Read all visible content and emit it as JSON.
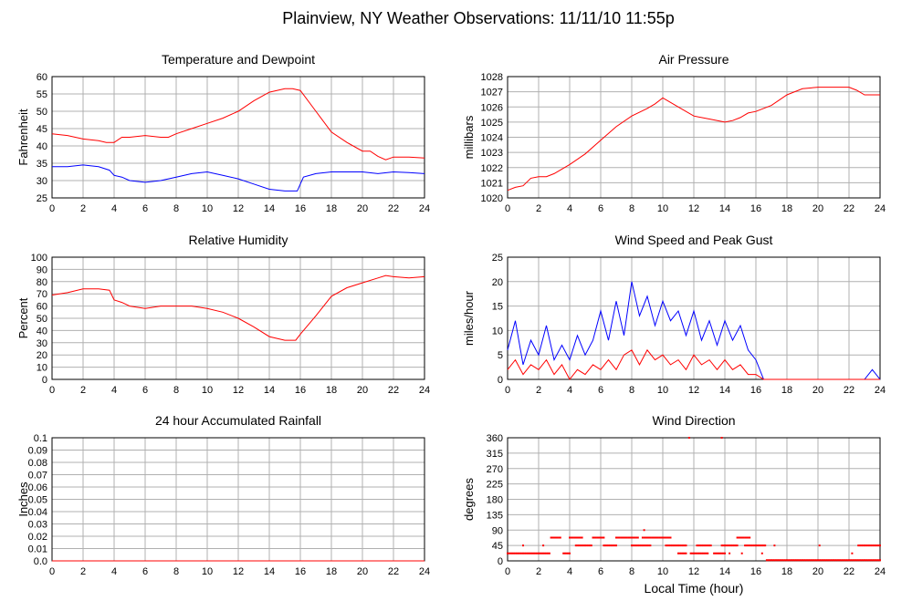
{
  "title": "Plainview, NY Weather Observations: 11/11/10 11:55p",
  "colors": {
    "red": "#ff0000",
    "blue": "#0000ff",
    "grid": "#b0b0b0",
    "frame": "#000000"
  },
  "chart_data": [
    {
      "id": "temp",
      "type": "line",
      "title": "Temperature and Dewpoint",
      "ylabel": "Fahrenheit",
      "xlabel": "",
      "xlim": [
        0,
        24
      ],
      "ylim": [
        25,
        60
      ],
      "xticks": [
        0,
        2,
        4,
        6,
        8,
        10,
        12,
        14,
        16,
        18,
        20,
        22,
        24
      ],
      "yticks": [
        "25",
        "30",
        "35",
        "40",
        "45",
        "50",
        "55",
        "60"
      ],
      "grid": true,
      "series": [
        {
          "color": "#ff0000",
          "x": [
            0,
            1,
            2,
            3,
            3.5,
            4,
            4.5,
            5,
            6,
            7,
            7.5,
            8,
            9,
            10,
            11,
            12,
            13,
            14,
            15,
            15.5,
            16,
            17,
            18,
            19,
            20,
            20.5,
            21,
            21.5,
            22,
            23,
            24
          ],
          "y": [
            43.5,
            43,
            42,
            41.5,
            41,
            41,
            42.5,
            42.5,
            43,
            42.5,
            42.5,
            43.5,
            45,
            46.5,
            48,
            50,
            53,
            55.5,
            56.5,
            56.5,
            56,
            50,
            44,
            41,
            38.5,
            38.5,
            37,
            36,
            36.8,
            36.8,
            36.5
          ]
        },
        {
          "color": "#0000ff",
          "x": [
            0,
            1,
            2,
            3,
            3.7,
            4,
            4.5,
            5,
            6,
            7,
            8,
            9,
            10,
            11,
            12,
            13,
            14,
            15,
            15.8,
            16,
            16.2,
            17,
            18,
            19,
            20,
            21,
            22,
            23,
            24
          ],
          "y": [
            34,
            34,
            34.5,
            34,
            33,
            31.5,
            31,
            30,
            29.5,
            30,
            31,
            32,
            32.5,
            31.5,
            30.5,
            29,
            27.5,
            27,
            27,
            29,
            31,
            32,
            32.5,
            32.5,
            32.5,
            32,
            32.5,
            32.3,
            32
          ]
        }
      ]
    },
    {
      "id": "pressure",
      "type": "line",
      "title": "Air Pressure",
      "ylabel": "millibars",
      "xlabel": "",
      "xlim": [
        0,
        24
      ],
      "ylim": [
        1020,
        1028
      ],
      "xticks": [
        0,
        2,
        4,
        6,
        8,
        10,
        12,
        14,
        16,
        18,
        20,
        22,
        24
      ],
      "yticks": [
        "1020",
        "1021",
        "1022",
        "1023",
        "1024",
        "1025",
        "1026",
        "1027",
        "1028"
      ],
      "grid": true,
      "series": [
        {
          "color": "#ff0000",
          "x": [
            0,
            0.5,
            1,
            1.5,
            2,
            2.5,
            3,
            3.5,
            4,
            5,
            6,
            7,
            8,
            9,
            9.5,
            10,
            10.5,
            11,
            12,
            13,
            14,
            14.5,
            15,
            15.5,
            16,
            17,
            18,
            19,
            20,
            21,
            22,
            22.5,
            23,
            24
          ],
          "y": [
            1020.5,
            1020.7,
            1020.8,
            1021.3,
            1021.4,
            1021.4,
            1021.6,
            1021.9,
            1022.2,
            1022.9,
            1023.8,
            1024.7,
            1025.4,
            1025.9,
            1026.2,
            1026.6,
            1026.3,
            1026,
            1025.4,
            1025.2,
            1025,
            1025.1,
            1025.3,
            1025.6,
            1025.7,
            1026.1,
            1026.8,
            1027.2,
            1027.3,
            1027.3,
            1027.3,
            1027.1,
            1026.8,
            1026.8
          ]
        }
      ]
    },
    {
      "id": "humidity",
      "type": "line",
      "title": "Relative Humidity",
      "ylabel": "Percent",
      "xlabel": "",
      "xlim": [
        0,
        24
      ],
      "ylim": [
        0,
        100
      ],
      "xticks": [
        0,
        2,
        4,
        6,
        8,
        10,
        12,
        14,
        16,
        18,
        20,
        22,
        24
      ],
      "yticks": [
        "0",
        "10",
        "20",
        "30",
        "40",
        "50",
        "60",
        "70",
        "80",
        "90",
        "100"
      ],
      "grid": true,
      "series": [
        {
          "color": "#ff0000",
          "x": [
            0,
            1,
            2,
            3,
            3.7,
            4,
            4.5,
            5,
            6,
            7,
            8,
            9,
            10,
            11,
            12,
            13,
            14,
            15,
            15.7,
            16,
            17,
            18,
            19,
            20,
            21,
            21.5,
            22,
            23,
            24
          ],
          "y": [
            69,
            71,
            74,
            74,
            73,
            65,
            63,
            60,
            58,
            60,
            60,
            60,
            58,
            55,
            50,
            43,
            35,
            32,
            32,
            37,
            52,
            68,
            75,
            79,
            83,
            85,
            84,
            83,
            84
          ]
        }
      ]
    },
    {
      "id": "wind",
      "type": "line",
      "title": "Wind Speed and Peak Gust",
      "ylabel": "miles/hour",
      "xlabel": "",
      "xlim": [
        0,
        24
      ],
      "ylim": [
        0,
        25
      ],
      "xticks": [
        0,
        2,
        4,
        6,
        8,
        10,
        12,
        14,
        16,
        18,
        20,
        22,
        24
      ],
      "yticks": [
        "0",
        "5",
        "10",
        "15",
        "20",
        "25"
      ],
      "grid": true,
      "series": [
        {
          "color": "#0000ff",
          "x": [
            0,
            0.5,
            1,
            1.5,
            2,
            2.5,
            3,
            3.5,
            4,
            4.5,
            5,
            5.5,
            6,
            6.5,
            7,
            7.5,
            8,
            8.5,
            9,
            9.5,
            10,
            10.5,
            11,
            11.5,
            12,
            12.5,
            13,
            13.5,
            14,
            14.5,
            15,
            15.5,
            16,
            16.5,
            17,
            18,
            19,
            20,
            21,
            22,
            23,
            23.5,
            24
          ],
          "y": [
            6,
            12,
            3,
            8,
            5,
            11,
            4,
            7,
            4,
            9,
            5,
            8,
            14,
            8,
            16,
            9,
            20,
            13,
            17,
            11,
            16,
            12,
            14,
            9,
            14,
            8,
            12,
            7,
            12,
            8,
            11,
            6,
            4,
            0,
            0,
            0,
            0,
            0,
            0,
            0,
            0,
            2,
            0
          ]
        },
        {
          "color": "#ff0000",
          "x": [
            0,
            0.5,
            1,
            1.5,
            2,
            2.5,
            3,
            3.5,
            4,
            4.5,
            5,
            5.5,
            6,
            6.5,
            7,
            7.5,
            8,
            8.5,
            9,
            9.5,
            10,
            10.5,
            11,
            11.5,
            12,
            12.5,
            13,
            13.5,
            14,
            14.5,
            15,
            15.5,
            16,
            16.5,
            17,
            24
          ],
          "y": [
            2,
            4,
            1,
            3,
            2,
            4,
            1,
            3,
            0,
            2,
            1,
            3,
            2,
            4,
            2,
            5,
            6,
            3,
            6,
            4,
            5,
            3,
            4,
            2,
            5,
            3,
            4,
            2,
            4,
            2,
            3,
            1,
            1,
            0,
            0,
            0
          ]
        }
      ]
    },
    {
      "id": "rain",
      "type": "line",
      "title": "24 hour Accumulated Rainfall",
      "ylabel": "Inches",
      "xlabel": "",
      "xlim": [
        0,
        24
      ],
      "ylim": [
        0,
        0.1
      ],
      "xticks": [
        0,
        2,
        4,
        6,
        8,
        10,
        12,
        14,
        16,
        18,
        20,
        22,
        24
      ],
      "yticks": [
        "0.0",
        "0.01",
        "0.02",
        "0.03",
        "0.04",
        "0.05",
        "0.06",
        "0.07",
        "0.08",
        "0.09",
        "0.1"
      ],
      "grid": true,
      "series": [
        {
          "color": "#ff0000",
          "x": [
            0,
            24
          ],
          "y": [
            0,
            0
          ]
        }
      ]
    },
    {
      "id": "direction",
      "type": "scatter",
      "title": "Wind Direction",
      "ylabel": "degrees",
      "xlabel": "Local Time (hour)",
      "xlim": [
        0,
        24
      ],
      "ylim": [
        0,
        360
      ],
      "xticks": [
        0,
        2,
        4,
        6,
        8,
        10,
        12,
        14,
        16,
        18,
        20,
        22,
        24
      ],
      "yticks": [
        "0",
        "45",
        "90",
        "135",
        "180",
        "225",
        "270",
        "315",
        "360"
      ],
      "grid": true,
      "series": [
        {
          "color": "#ff0000",
          "segments": [
            [
              0,
              2.7,
              22
            ],
            [
              2.8,
              3.4,
              68
            ],
            [
              3.6,
              4.0,
              22
            ],
            [
              4.0,
              4.8,
              68
            ],
            [
              4.4,
              5.4,
              45
            ],
            [
              5.5,
              6.2,
              68
            ],
            [
              6.2,
              7.0,
              45
            ],
            [
              7.0,
              8.4,
              68
            ],
            [
              8.0,
              9.2,
              45
            ],
            [
              8.7,
              10.5,
              68
            ],
            [
              10.2,
              11.5,
              45
            ],
            [
              11.0,
              11.5,
              22
            ],
            [
              11.8,
              12.9,
              22
            ],
            [
              12.2,
              13.1,
              45
            ],
            [
              13.3,
              14.0,
              22
            ],
            [
              13.8,
              14.8,
              45
            ],
            [
              14.8,
              15.6,
              68
            ],
            [
              15.3,
              16.6,
              45
            ],
            [
              16.7,
              24,
              2
            ],
            [
              22.6,
              24,
              45
            ]
          ],
          "points": [
            [
              11.7,
              360
            ],
            [
              13.8,
              360
            ],
            [
              8.8,
              90
            ],
            [
              1.0,
              45
            ],
            [
              17.2,
              45
            ],
            [
              20.1,
              45
            ],
            [
              2.3,
              45
            ],
            [
              14.3,
              22
            ],
            [
              15.1,
              22
            ],
            [
              16.4,
              22
            ],
            [
              22.2,
              22
            ]
          ]
        }
      ]
    }
  ]
}
